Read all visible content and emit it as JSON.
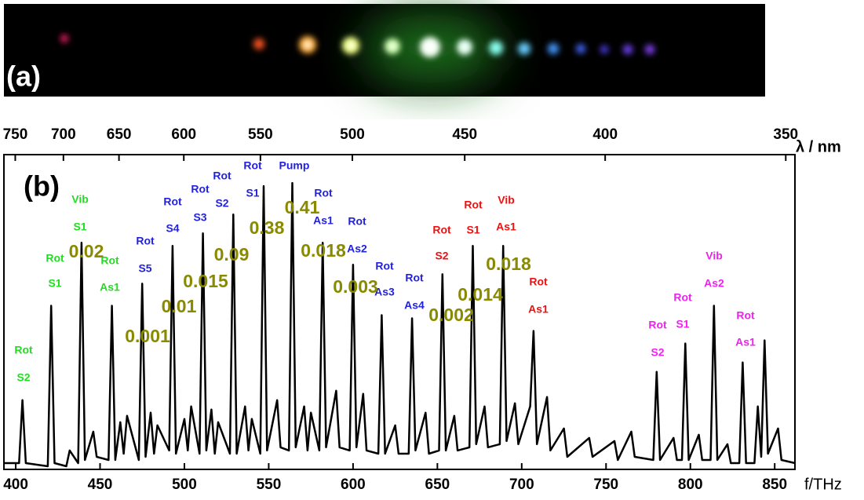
{
  "photo": {
    "label": "(a)"
  },
  "chart_data": {
    "type": "line",
    "panel_label": "(b)",
    "x_label": "f/THz",
    "x2_label": "λ / nm",
    "color": "#000000",
    "xlim": [
      393,
      862
    ],
    "ylim": [
      0,
      1
    ],
    "xticks": [
      400,
      450,
      500,
      550,
      600,
      650,
      700,
      750,
      800,
      850
    ],
    "x2ticks": [
      750,
      700,
      650,
      600,
      550,
      500,
      450,
      400,
      350
    ],
    "x": [
      393,
      402,
      404,
      406,
      419,
      421,
      423,
      430,
      432,
      437,
      439,
      441,
      446,
      448,
      455,
      457,
      459,
      462,
      464,
      466,
      473,
      475,
      477,
      480,
      482,
      484,
      491,
      493,
      495,
      500,
      502,
      504,
      509,
      511,
      513,
      516,
      518,
      520,
      527,
      529,
      531,
      536,
      538,
      540,
      545,
      547,
      549,
      555,
      557,
      562,
      564,
      566,
      571,
      573,
      575,
      580,
      582,
      584,
      590,
      592,
      598,
      600,
      602,
      606,
      608,
      615,
      617,
      619,
      625,
      627,
      633,
      635,
      637,
      643,
      645,
      651,
      653,
      655,
      660,
      662,
      669,
      671,
      673,
      678,
      680,
      687,
      689,
      691,
      696,
      698,
      705,
      707,
      709,
      715,
      717,
      725,
      727,
      740,
      742,
      755,
      757,
      765,
      767,
      778,
      780,
      782,
      790,
      792,
      795,
      797,
      799,
      805,
      807,
      812,
      814,
      816,
      822,
      824,
      829,
      831,
      833,
      838,
      840,
      842,
      844,
      846,
      852,
      854,
      862
    ],
    "values": [
      0.02,
      0.02,
      0.22,
      0.02,
      0.01,
      0.52,
      0.02,
      0.01,
      0.06,
      0.02,
      0.72,
      0.03,
      0.12,
      0.04,
      0.03,
      0.52,
      0.03,
      0.15,
      0.05,
      0.17,
      0.03,
      0.59,
      0.04,
      0.18,
      0.05,
      0.14,
      0.06,
      0.71,
      0.05,
      0.16,
      0.06,
      0.2,
      0.05,
      0.75,
      0.06,
      0.19,
      0.05,
      0.15,
      0.05,
      0.81,
      0.05,
      0.2,
      0.06,
      0.16,
      0.05,
      0.9,
      0.06,
      0.22,
      0.07,
      0.06,
      0.91,
      0.07,
      0.2,
      0.06,
      0.18,
      0.06,
      0.72,
      0.07,
      0.25,
      0.07,
      0.06,
      0.65,
      0.07,
      0.24,
      0.06,
      0.05,
      0.49,
      0.05,
      0.14,
      0.05,
      0.05,
      0.48,
      0.06,
      0.18,
      0.05,
      0.06,
      0.62,
      0.06,
      0.17,
      0.06,
      0.07,
      0.71,
      0.08,
      0.2,
      0.07,
      0.08,
      0.71,
      0.09,
      0.21,
      0.08,
      0.2,
      0.44,
      0.08,
      0.23,
      0.06,
      0.13,
      0.04,
      0.1,
      0.04,
      0.09,
      0.03,
      0.12,
      0.04,
      0.03,
      0.31,
      0.03,
      0.1,
      0.03,
      0.03,
      0.4,
      0.03,
      0.11,
      0.03,
      0.03,
      0.52,
      0.03,
      0.08,
      0.02,
      0.02,
      0.34,
      0.02,
      0.02,
      0.2,
      0.04,
      0.41,
      0.05,
      0.13,
      0.03,
      0.02
    ],
    "peak_labels": [
      {
        "lines": [
          "Rot",
          "S2"
        ],
        "color": "#22dd22"
      },
      {
        "lines": [
          "Rot",
          "S1"
        ],
        "color": "#22dd22"
      },
      {
        "lines": [
          "Vib",
          "S1"
        ],
        "color": "#22dd22"
      },
      {
        "lines": [
          "Rot",
          "As1"
        ],
        "color": "#22dd22"
      },
      {
        "lines": [
          "Rot",
          "S5"
        ],
        "color": "#2222dd"
      },
      {
        "lines": [
          "Rot",
          "S4"
        ],
        "color": "#2222dd"
      },
      {
        "lines": [
          "Rot",
          "S3"
        ],
        "color": "#2222dd"
      },
      {
        "lines": [
          "Rot",
          "S2"
        ],
        "color": "#2222dd"
      },
      {
        "lines": [
          "Rot",
          "S1"
        ],
        "color": "#2222dd"
      },
      {
        "lines": [
          "Pump"
        ],
        "color": "#2222dd"
      },
      {
        "lines": [
          "Rot",
          "As1"
        ],
        "color": "#2222dd"
      },
      {
        "lines": [
          "Rot",
          "As2"
        ],
        "color": "#2222dd"
      },
      {
        "lines": [
          "Rot",
          "As3"
        ],
        "color": "#2222dd"
      },
      {
        "lines": [
          "Rot",
          "As4"
        ],
        "color": "#2222dd"
      },
      {
        "lines": [
          "Rot",
          "S2"
        ],
        "color": "#ee1111"
      },
      {
        "lines": [
          "Rot",
          "S1"
        ],
        "color": "#ee1111"
      },
      {
        "lines": [
          "Vib",
          "As1"
        ],
        "color": "#ee1111"
      },
      {
        "lines": [
          "Rot",
          "As1"
        ],
        "color": "#ee1111"
      },
      {
        "lines": [
          "Rot",
          "S2"
        ],
        "color": "#ee22ee"
      },
      {
        "lines": [
          "Rot",
          "S1"
        ],
        "color": "#ee22ee"
      },
      {
        "lines": [
          "Vib",
          "As2"
        ],
        "color": "#ee22ee"
      },
      {
        "lines": [
          "Rot",
          "As1"
        ],
        "color": "#ee22ee"
      }
    ],
    "efficiency_color": "#8a8a00",
    "efficiencies": [
      "0.02",
      "0.001",
      "0.01",
      "0.015",
      "0.09",
      "0.38",
      "0.41",
      "0.018",
      "0.003",
      "0.002",
      "0.014",
      "0.018"
    ]
  }
}
